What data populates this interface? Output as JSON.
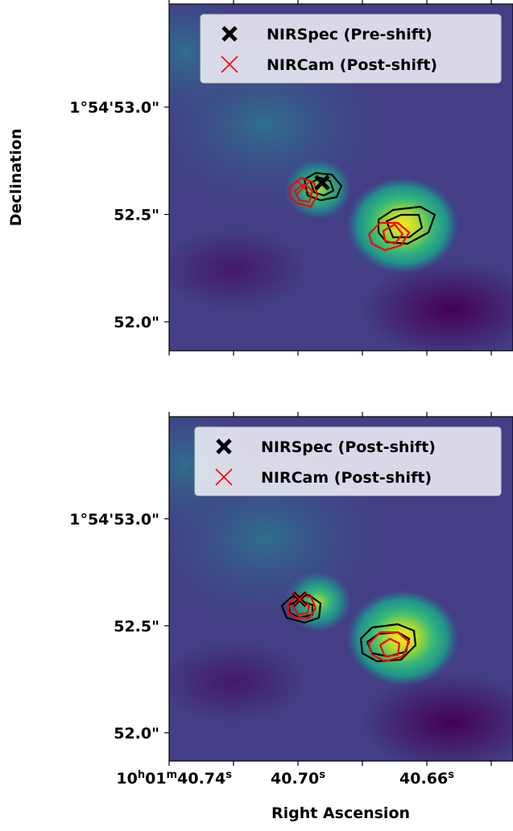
{
  "chart_data": [
    {
      "type": "image",
      "ylabel": "Declination",
      "xlim": [
        40.74,
        40.63325
      ],
      "ylim": [
        51.865,
        53.48
      ],
      "xticks": [
        40.74,
        40.7,
        40.66
      ],
      "xminor_ticks": [
        40.72,
        40.68,
        40.64
      ],
      "xticklabels": false,
      "yticks": [
        {
          "value": 53.0,
          "label": "1°54'53.0\""
        },
        {
          "value": 52.5,
          "label": "52.5\""
        },
        {
          "value": 52.0,
          "label": "52.0\""
        }
      ],
      "legend": "upper right",
      "series": [
        {
          "name": "NIRSpec (Pre-shift)",
          "color": "#000000",
          "marker": "bold-x",
          "x": [
            40.6925
          ],
          "y": [
            52.648
          ]
        },
        {
          "name": "NIRCam (Post-shift)",
          "color": "#ff0000",
          "marker": "thin-x",
          "x": [
            40.69825
          ],
          "y": [
            52.625
          ]
        }
      ]
    },
    {
      "type": "image",
      "xlabel": "Right Ascension",
      "xlim": [
        40.74,
        40.63325
      ],
      "ylim": [
        51.868,
        53.477
      ],
      "xticks": [
        {
          "value": 40.74,
          "label": "10h01m40.74s"
        },
        {
          "value": 40.7,
          "label": "40.70s"
        },
        {
          "value": 40.66,
          "label": "40.66s"
        }
      ],
      "xminor_ticks": [
        40.72,
        40.68,
        40.64
      ],
      "xticklabels": true,
      "yticks": [
        {
          "value": 53.0,
          "label": "1°54'53.0\""
        },
        {
          "value": 52.5,
          "label": "52.5\""
        },
        {
          "value": 52.0,
          "label": "52.0\""
        }
      ],
      "legend": "upper right",
      "series": [
        {
          "name": "NIRSpec (Post-shift)",
          "color": "#000000",
          "marker": "bold-x",
          "x": [
            40.6995
          ],
          "y": [
            52.624
          ]
        },
        {
          "name": "NIRCam (Post-shift)",
          "color": "#ff0000",
          "marker": "thin-x",
          "x": [
            40.6995
          ],
          "y": [
            52.624
          ]
        }
      ]
    }
  ]
}
